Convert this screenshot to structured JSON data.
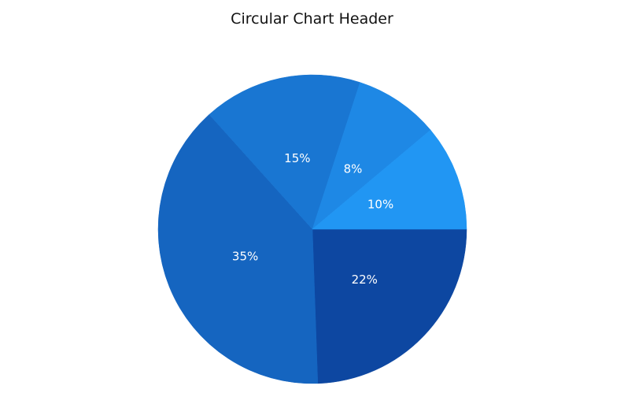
{
  "title": "Circular Chart Header",
  "chart_data": {
    "type": "pie",
    "title": "Circular Chart Header",
    "start": "3 o'clock",
    "direction": "clockwise",
    "slices": [
      {
        "value": 22,
        "label": "22%",
        "color": "#0D47A1"
      },
      {
        "value": 35,
        "label": "35%",
        "color": "#1565C0"
      },
      {
        "value": 15,
        "label": "15%",
        "color": "#1976D2"
      },
      {
        "value": 8,
        "label": "8%",
        "color": "#1E88E5"
      },
      {
        "value": 10,
        "label": "10%",
        "color": "#2196F3"
      }
    ]
  }
}
